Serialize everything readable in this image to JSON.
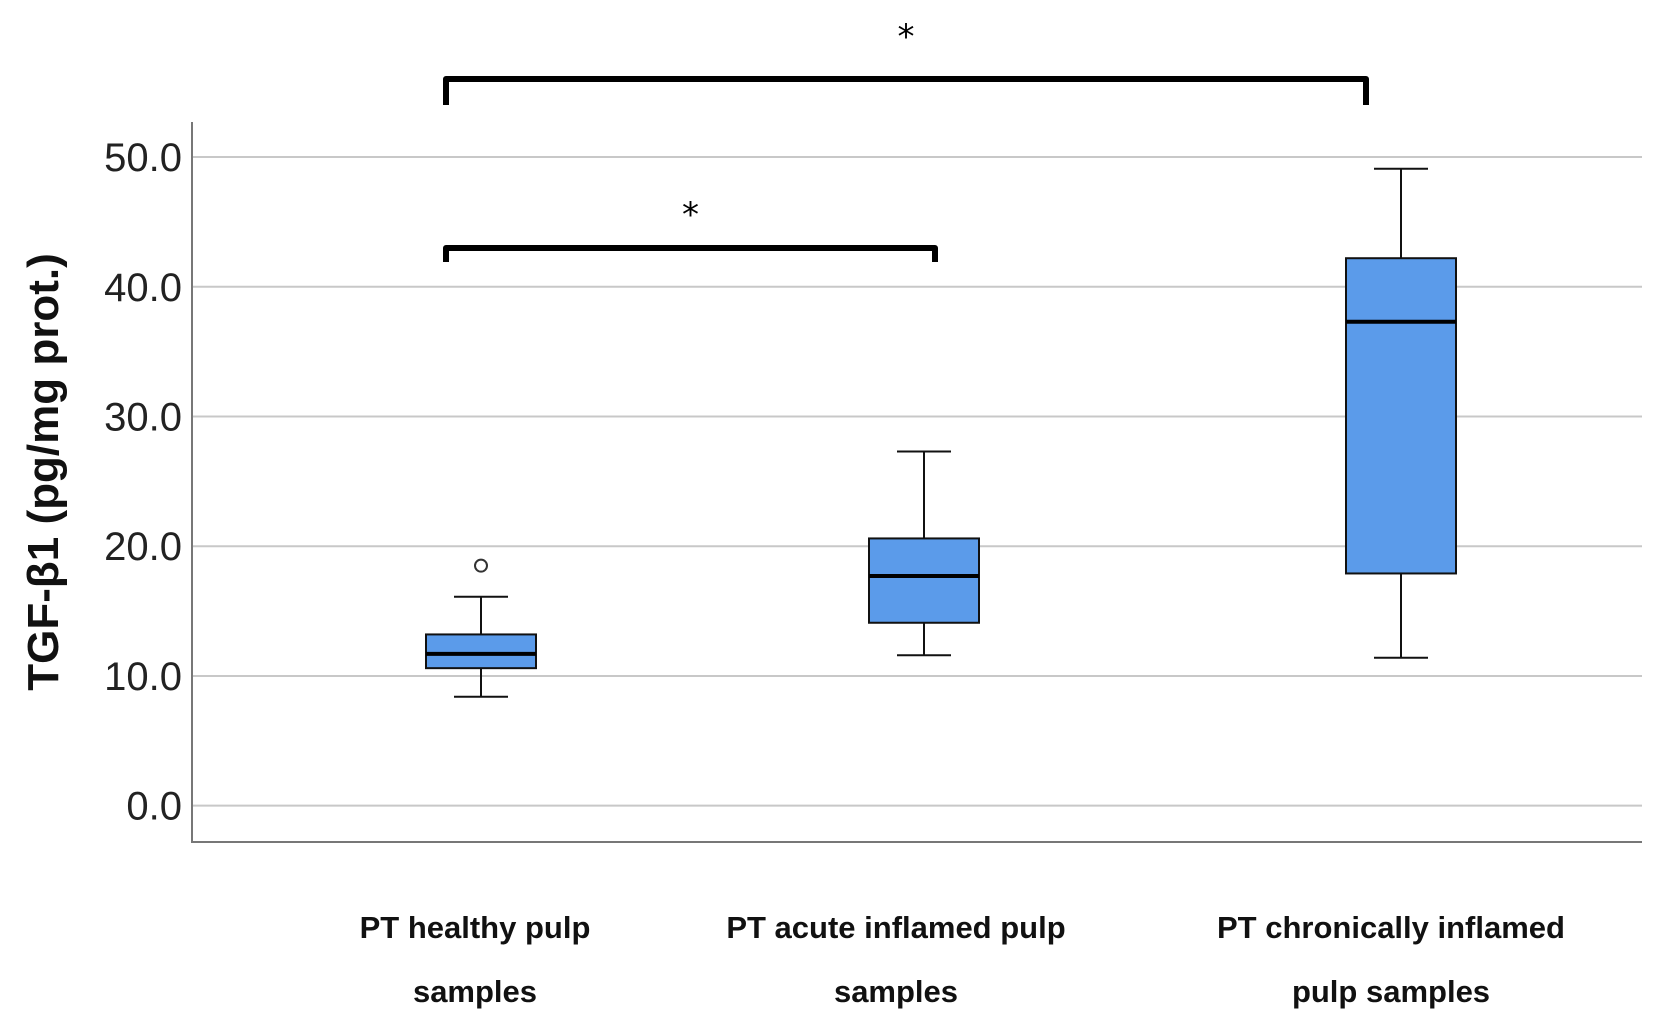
{
  "chart_data": {
    "type": "boxplot",
    "title": "",
    "ylabel": "TGF-β1 (pg/mg prot.)",
    "xlabel": "",
    "ylim": [
      -2.8,
      52.7
    ],
    "yticks": [
      0,
      10,
      20,
      30,
      40,
      50
    ],
    "ytick_labels": [
      "0.0",
      "10.0",
      "20.0",
      "30.0",
      "40.0",
      "50.0"
    ],
    "grid": true,
    "box_color": "#5b9bea",
    "categories": [
      {
        "id": "healthy",
        "label_lines": [
          "PT healthy pulp",
          "samples"
        ]
      },
      {
        "id": "acute",
        "label_lines": [
          "PT acute inflamed pulp",
          "samples"
        ]
      },
      {
        "id": "chronic",
        "label_lines": [
          "PT chronically inflamed",
          "pulp samples"
        ]
      }
    ],
    "boxes": [
      {
        "category": "healthy",
        "whisker_low": 8.4,
        "q1": 10.6,
        "median": 11.7,
        "q3": 13.2,
        "whisker_high": 16.1,
        "outliers": [
          18.5
        ]
      },
      {
        "category": "acute",
        "whisker_low": 11.6,
        "q1": 14.1,
        "median": 17.7,
        "q3": 20.6,
        "whisker_high": 27.3,
        "outliers": []
      },
      {
        "category": "chronic",
        "whisker_low": 11.4,
        "q1": 17.9,
        "median": 37.3,
        "q3": 42.2,
        "whisker_high": 49.1,
        "outliers": []
      }
    ],
    "significance": [
      {
        "from": "healthy",
        "to": "chronic",
        "label": "*",
        "level": "upper"
      },
      {
        "from": "healthy",
        "to": "acute",
        "label": "*",
        "level": "lower"
      }
    ]
  }
}
